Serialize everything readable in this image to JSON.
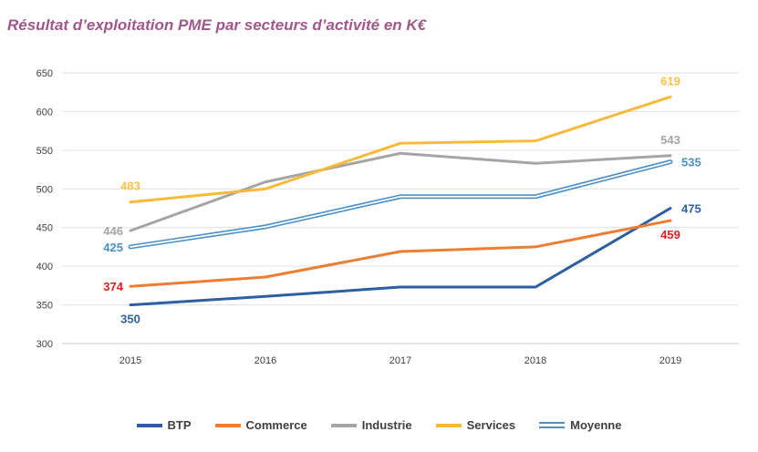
{
  "chart_data": {
    "type": "line",
    "title": "Résultat d’exploitation PME par secteurs d’activité en K€",
    "xlabel": "",
    "ylabel": "",
    "categories": [
      "2015",
      "2016",
      "2017",
      "2018",
      "2019"
    ],
    "ylim": [
      300,
      650
    ],
    "yticks": [
      "300",
      "350",
      "400",
      "450",
      "500",
      "550",
      "600",
      "650"
    ],
    "grid": true,
    "legend_position": "bottom",
    "series": [
      {
        "name": "BTP",
        "color": "#2e5fa3",
        "values": [
          350,
          361,
          373,
          373,
          475
        ],
        "labels": [
          {
            "index": 0,
            "text": "350",
            "pos": "below"
          },
          {
            "index": 4,
            "text": "475",
            "pos": "right"
          }
        ]
      },
      {
        "name": "Commerce",
        "color": "#ed7d31",
        "values": [
          374,
          386,
          419,
          425,
          459
        ],
        "labels": [
          {
            "index": 0,
            "text": "374",
            "pos": "left"
          },
          {
            "index": 4,
            "text": "459",
            "pos": "below"
          }
        ]
      },
      {
        "name": "Industrie",
        "color": "#a5a5a5",
        "values": [
          446,
          509,
          546,
          533,
          543
        ],
        "labels": [
          {
            "index": 0,
            "text": "446",
            "pos": "left"
          },
          {
            "index": 4,
            "text": "543",
            "pos": "above"
          }
        ]
      },
      {
        "name": "Services",
        "color": "#f9b93a",
        "values": [
          483,
          500,
          559,
          562,
          619
        ],
        "labels": [
          {
            "index": 0,
            "text": "483",
            "pos": "above"
          },
          {
            "index": 4,
            "text": "619",
            "pos": "above"
          }
        ]
      },
      {
        "name": "Moyenne",
        "color": "#4a90c8",
        "style": "double",
        "values": [
          425,
          451,
          490,
          490,
          535
        ],
        "labels": [
          {
            "index": 0,
            "text": "425",
            "pos": "left"
          },
          {
            "index": 4,
            "text": "535",
            "pos": "right"
          }
        ]
      }
    ],
    "label_colors": {
      "BTP": "#2e5fa3",
      "Commerce": "#e02020",
      "Industrie": "#a5a5a5",
      "Services": "#f9c24a",
      "Moyenne": "#4a90c8"
    }
  }
}
